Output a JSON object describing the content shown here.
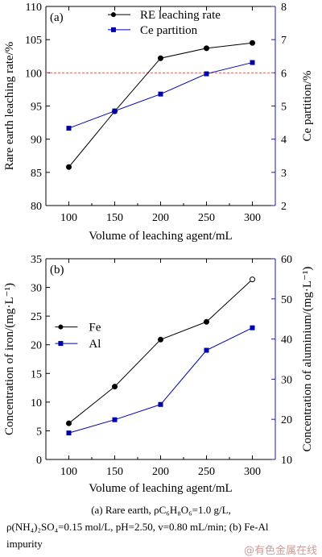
{
  "chart_data": [
    {
      "type": "line",
      "panel_label": "(a)",
      "xlabel": "Volume of leaching agent/mL",
      "ylabel_left": "Rare earth leaching rate/%",
      "ylabel_right": "Ce partition/%",
      "categories": [
        100,
        150,
        200,
        250,
        300
      ],
      "x_ticks": [
        "100",
        "150",
        "200",
        "250",
        "300"
      ],
      "ylim_left": [
        80,
        110
      ],
      "ylim_right": [
        2,
        8
      ],
      "yticks_left": [
        "80",
        "85",
        "90",
        "95",
        "100",
        "105",
        "110"
      ],
      "yticks_right": [
        "2",
        "3",
        "4",
        "5",
        "6",
        "7",
        "8"
      ],
      "reference_line": {
        "y": 100,
        "axis": "left",
        "color": "#e06666",
        "style": "dashed"
      },
      "legend_position": "top",
      "series": [
        {
          "name": "RE leaching rate",
          "axis": "left",
          "marker": "circle",
          "color": "#000000",
          "values": [
            85.8,
            94.2,
            102.2,
            103.7,
            104.5
          ]
        },
        {
          "name": "Ce partition",
          "axis": "right",
          "marker": "square",
          "color": "#0000aa",
          "values": [
            4.33,
            4.85,
            5.36,
            5.97,
            6.31
          ]
        }
      ]
    },
    {
      "type": "line",
      "panel_label": "(b)",
      "xlabel": "Volume of leaching agent/mL",
      "ylabel_left": "Concentration of iron/(mg·L⁻¹)",
      "ylabel_right": "Concentration of aluminium/(mg·L⁻¹)",
      "categories": [
        100,
        150,
        200,
        250,
        300
      ],
      "x_ticks": [
        "100",
        "150",
        "200",
        "250",
        "300"
      ],
      "ylim_left": [
        0,
        35
      ],
      "ylim_right": [
        10,
        60
      ],
      "yticks_left": [
        "0",
        "5",
        "10",
        "15",
        "20",
        "25",
        "30",
        "35"
      ],
      "yticks_right": [
        "10",
        "20",
        "30",
        "40",
        "50",
        "60"
      ],
      "legend_position": "middle-left",
      "series": [
        {
          "name": "Fe",
          "axis": "left",
          "marker": "circle",
          "color": "#000000",
          "values": [
            6.3,
            12.7,
            20.9,
            24.0,
            31.4
          ]
        },
        {
          "name": "Al",
          "axis": "right",
          "marker": "square",
          "color": "#0000aa",
          "values": [
            16.6,
            19.9,
            23.7,
            37.2,
            42.8
          ]
        }
      ]
    }
  ],
  "caption": {
    "line1": "(a) Rare earth, ρC₆H₈O₆=1.0 g/L,",
    "line2": "ρ(NH₄)₂SO₄=0.15 mol/L, pH=2.50, v=0.80 mL/min; (b) Fe-Al",
    "line3": "impurity"
  },
  "watermark": "@有色金属在线"
}
